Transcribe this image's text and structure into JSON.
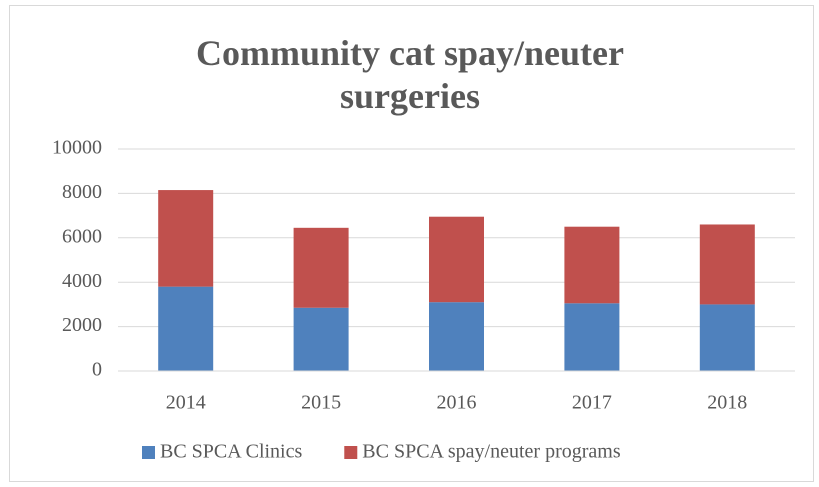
{
  "chart_data": {
    "type": "stacked_bar",
    "title": "Community cat spay/neuter surgeries",
    "categories": [
      "2014",
      "2015",
      "2016",
      "2017",
      "2018"
    ],
    "series": [
      {
        "name": "BC SPCA Clinics",
        "color": "#4f81bd",
        "values": [
          3800,
          2850,
          3100,
          3050,
          3000
        ]
      },
      {
        "name": "BC SPCA spay/neuter programs",
        "color": "#c0504d",
        "values": [
          4350,
          3600,
          3850,
          3450,
          3600
        ]
      }
    ],
    "ylim": [
      0,
      10000
    ],
    "yticks": [
      0,
      2000,
      4000,
      6000,
      8000,
      10000
    ],
    "grid": true,
    "legend": "bottom"
  }
}
